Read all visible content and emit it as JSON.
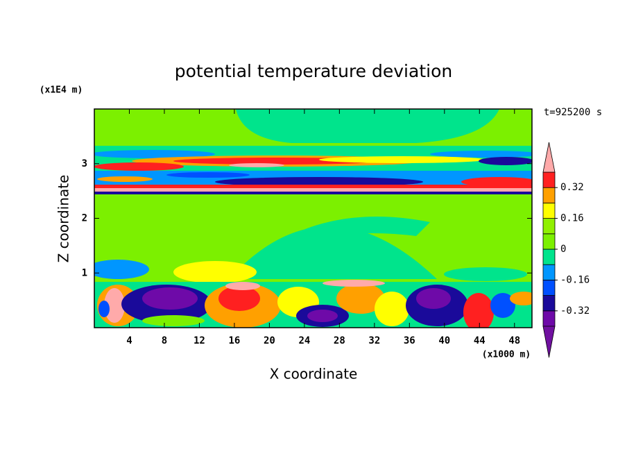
{
  "chart_data": {
    "type": "contour",
    "title": "potential temperature deviation",
    "x_label": "X coordinate",
    "y_label": "Z coordinate",
    "x_unit": "(x1000 m)",
    "y_unit": "(x1E4 m)",
    "time_label": "t=925200 s",
    "xlim": [
      0,
      50
    ],
    "xticks": [
      4,
      8,
      12,
      16,
      20,
      24,
      28,
      32,
      36,
      40,
      44,
      48
    ],
    "ylim": [
      0,
      4
    ],
    "yticks": [
      1,
      2,
      3
    ],
    "colorbar": {
      "lim": [
        -0.4,
        0.4
      ],
      "ticks": [
        0.32,
        0.16,
        0,
        -0.16,
        -0.32
      ],
      "colors": [
        "#6e0aa8",
        "#1a0a9a",
        "#0050ff",
        "#0096ff",
        "#00e48c",
        "#7cf000",
        "#90f000",
        "#ffff00",
        "#ffa000",
        "#ff2020"
      ],
      "extend_colors": [
        "#7010a0",
        "#ffaaaa"
      ]
    }
  }
}
